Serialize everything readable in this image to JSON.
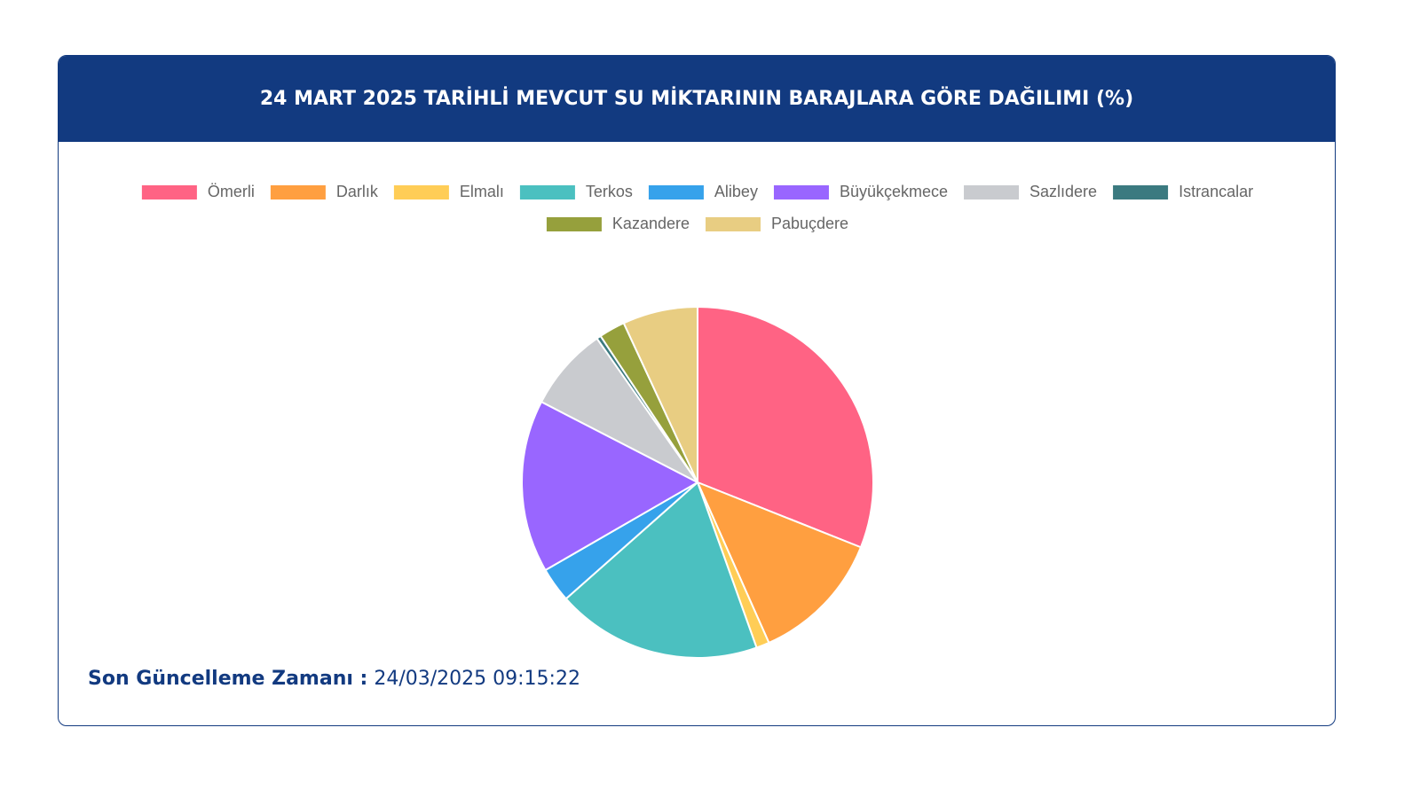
{
  "chart_data": {
    "type": "pie",
    "title": "24 MART 2025 TARİHLİ MEVCUT SU MİKTARININ BARAJLARA GÖRE DAĞILIMI (%)",
    "categories": [
      "Ömerli",
      "Darlık",
      "Elmalı",
      "Terkos",
      "Alibey",
      "Büyükçekmece",
      "Sazlıdere",
      "Istrancalar",
      "Kazandere",
      "Pabuçdere"
    ],
    "values": [
      31.0,
      12.3,
      1.2,
      18.9,
      3.2,
      15.9,
      7.7,
      0.4,
      2.4,
      6.9
    ],
    "colors": [
      "#ff6384",
      "#ff9f40",
      "#ffcd56",
      "#4bc0c0",
      "#36a2eb",
      "#9966ff",
      "#c9cbcf",
      "#3b7a80",
      "#96a03c",
      "#e8cd82"
    ],
    "legend": "top"
  },
  "footer": {
    "label": "Son Güncelleme Zamanı :",
    "timestamp": "24/03/2025 09:15:22"
  }
}
